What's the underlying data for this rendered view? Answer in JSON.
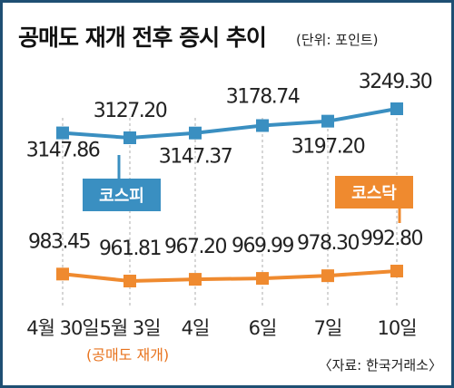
{
  "chart_data": {
    "type": "line",
    "title": "공매도 재개 전후 증시 추이",
    "unit": "(단위: 포인트)",
    "categories": [
      "4월 30일",
      "5월 3일",
      "4일",
      "6일",
      "7일",
      "10일"
    ],
    "event_annotation": "(공매도 재개)",
    "source": "〈자료: 한국거래소〉",
    "series": [
      {
        "name": "코스피",
        "color": "#3a8fc1",
        "labels": [
          "3147.86",
          "3127.20",
          "3147.37",
          "3178.74",
          "3197.20",
          "3249.30"
        ],
        "values": [
          3147.86,
          3127.2,
          3147.37,
          3178.74,
          3197.2,
          3249.3
        ]
      },
      {
        "name": "코스닥",
        "color": "#ef8a2f",
        "labels": [
          "983.45",
          "961.81",
          "967.20",
          "969.99",
          "978.30",
          "992.80"
        ],
        "values": [
          983.45,
          961.81,
          967.2,
          969.99,
          978.3,
          992.8
        ]
      }
    ],
    "colors": {
      "frame": "#1e4f73",
      "grid": "#bbbbbb",
      "background": "#ffffff"
    }
  }
}
